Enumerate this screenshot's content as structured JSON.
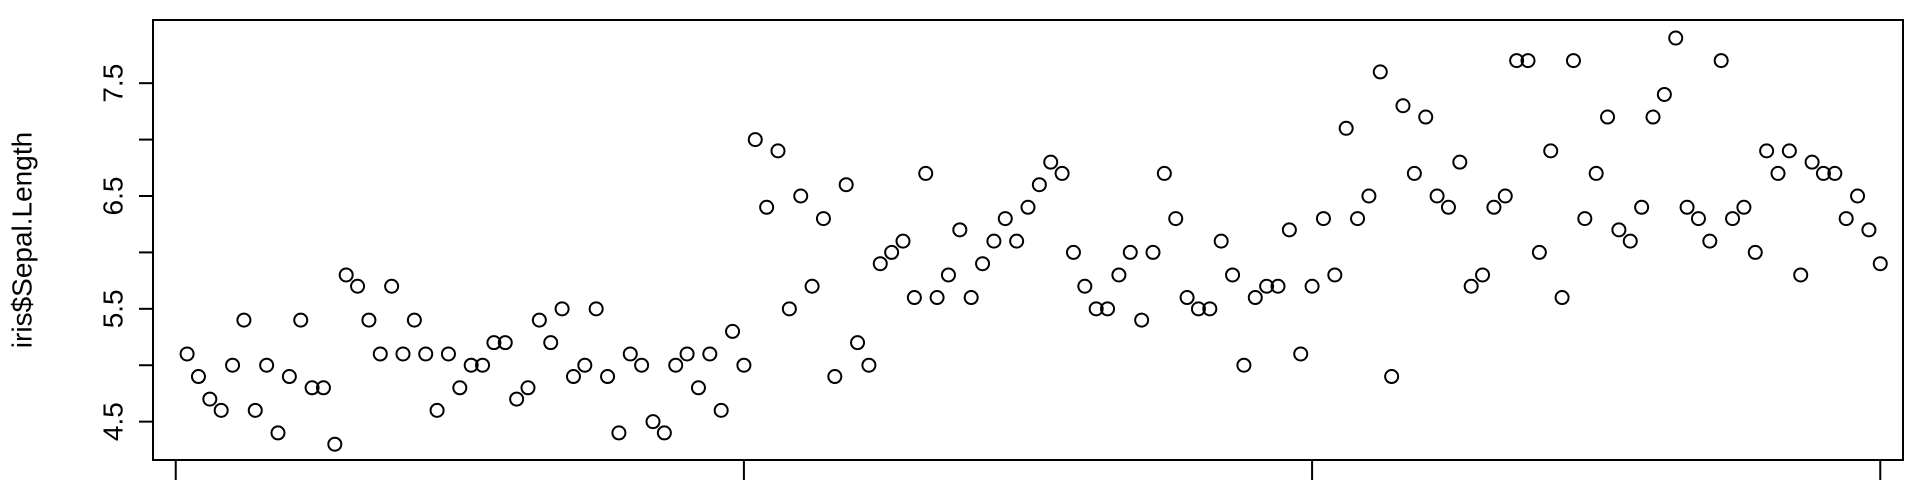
{
  "chart_data": {
    "type": "scatter",
    "ylabel": "iris$Sepal.Length",
    "xlabel": "",
    "title": "",
    "xlim": [
      -2,
      152
    ],
    "ylim": [
      4.16,
      8.06
    ],
    "y_ticks": [
      4.5,
      5.5,
      6.5,
      7.5
    ],
    "y_tick_labels": [
      "4.5",
      "5.5",
      "6.5",
      "7.5"
    ],
    "y_minor_ticks": [
      5,
      6,
      7
    ],
    "x_ticks": [
      0,
      50,
      100,
      150
    ],
    "grid": false,
    "marker": "open-circle",
    "x": [
      1,
      2,
      3,
      4,
      5,
      6,
      7,
      8,
      9,
      10,
      11,
      12,
      13,
      14,
      15,
      16,
      17,
      18,
      19,
      20,
      21,
      22,
      23,
      24,
      25,
      26,
      27,
      28,
      29,
      30,
      31,
      32,
      33,
      34,
      35,
      36,
      37,
      38,
      39,
      40,
      41,
      42,
      43,
      44,
      45,
      46,
      47,
      48,
      49,
      50,
      51,
      52,
      53,
      54,
      55,
      56,
      57,
      58,
      59,
      60,
      61,
      62,
      63,
      64,
      65,
      66,
      67,
      68,
      69,
      70,
      71,
      72,
      73,
      74,
      75,
      76,
      77,
      78,
      79,
      80,
      81,
      82,
      83,
      84,
      85,
      86,
      87,
      88,
      89,
      90,
      91,
      92,
      93,
      94,
      95,
      96,
      97,
      98,
      99,
      100,
      101,
      102,
      103,
      104,
      105,
      106,
      107,
      108,
      109,
      110,
      111,
      112,
      113,
      114,
      115,
      116,
      117,
      118,
      119,
      120,
      121,
      122,
      123,
      124,
      125,
      126,
      127,
      128,
      129,
      130,
      131,
      132,
      133,
      134,
      135,
      136,
      137,
      138,
      139,
      140,
      141,
      142,
      143,
      144,
      145,
      146,
      147,
      148,
      149,
      150
    ],
    "y": [
      5.1,
      4.9,
      4.7,
      4.6,
      5.0,
      5.4,
      4.6,
      5.0,
      4.4,
      4.9,
      5.4,
      4.8,
      4.8,
      4.3,
      5.8,
      5.7,
      5.4,
      5.1,
      5.7,
      5.1,
      5.4,
      5.1,
      4.6,
      5.1,
      4.8,
      5.0,
      5.0,
      5.2,
      5.2,
      4.7,
      4.8,
      5.4,
      5.2,
      5.5,
      4.9,
      5.0,
      5.5,
      4.9,
      4.4,
      5.1,
      5.0,
      4.5,
      4.4,
      5.0,
      5.1,
      4.8,
      5.1,
      4.6,
      5.3,
      5.0,
      7.0,
      6.4,
      6.9,
      5.5,
      6.5,
      5.7,
      6.3,
      4.9,
      6.6,
      5.2,
      5.0,
      5.9,
      6.0,
      6.1,
      5.6,
      6.7,
      5.6,
      5.8,
      6.2,
      5.6,
      5.9,
      6.1,
      6.3,
      6.1,
      6.4,
      6.6,
      6.8,
      6.7,
      6.0,
      5.7,
      5.5,
      5.5,
      5.8,
      6.0,
      5.4,
      6.0,
      6.7,
      6.3,
      5.6,
      5.5,
      5.5,
      6.1,
      5.8,
      5.0,
      5.6,
      5.7,
      5.7,
      6.2,
      5.1,
      5.7,
      6.3,
      5.8,
      7.1,
      6.3,
      6.5,
      7.6,
      4.9,
      7.3,
      6.7,
      7.2,
      6.5,
      6.4,
      6.8,
      5.7,
      5.8,
      6.4,
      6.5,
      7.7,
      7.7,
      6.0,
      6.9,
      5.6,
      7.7,
      6.3,
      6.7,
      7.2,
      6.2,
      6.1,
      6.4,
      7.2,
      7.4,
      7.9,
      6.4,
      6.3,
      6.1,
      7.7,
      6.3,
      6.4,
      6.0,
      6.9,
      6.7,
      6.9,
      5.8,
      6.8,
      6.7,
      6.7,
      6.3,
      6.5,
      6.2,
      5.9
    ]
  }
}
